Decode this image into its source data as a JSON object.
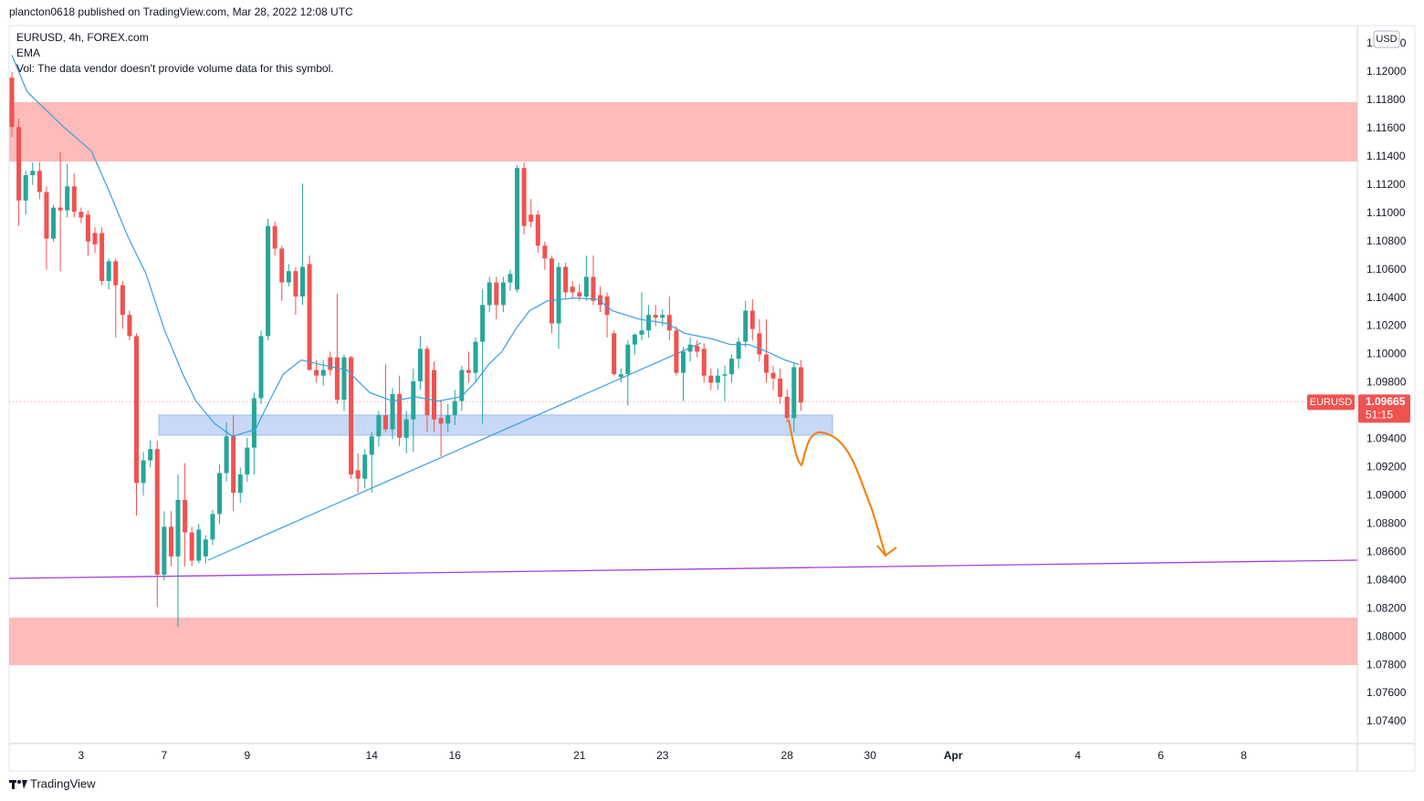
{
  "header": "plancton0618 published on TradingView.com, Mar 28, 2022 12:08 UTC",
  "footer": "TradingView",
  "chart_data": {
    "type": "candlestick",
    "title": "EURUSD, 4h, FOREX.com",
    "note": "Vol: The data vendor doesn't provide volume data for this symbol.",
    "currency": "USD",
    "up_color": "#26a69a",
    "down_color": "#ef5350",
    "open": [
      1.1196,
      1.1161,
      1.1109,
      1.1127,
      1.113,
      1.1115,
      1.1082,
      1.1104,
      1.1102,
      1.1119,
      1.1101,
      1.1099,
      1.1086,
      1.1086,
      1.1052,
      1.1066,
      1.1049,
      1.1028,
      1.1013,
      1.0909,
      1.0925,
      1.0933,
      1.0844,
      1.0878,
      1.0857,
      1.0897,
      1.0874,
      1.0854,
      1.0857,
      1.0869,
      1.0887,
      1.0916,
      1.0942,
      1.0902,
      1.0915,
      1.0934,
      1.0969,
      1.1013,
      1.1091,
      1.1075,
      1.1051,
      1.1059,
      1.1041,
      1.1064,
      1.0989,
      1.0985,
      1.0998,
      1.0998,
      1.0968,
      1.0998,
      1.0918,
      1.0912,
      1.0929,
      1.0942,
      1.0957,
      1.0947,
      1.0972,
      1.0941,
      1.0954,
      1.0981,
      1.1004,
      1.0989,
      1.0955,
      1.0951,
      1.0957,
      1.0967,
      1.0989,
      1.0987,
      1.1009,
      1.1035,
      1.1051,
      1.1035,
      1.1051,
      1.1046,
      1.1132,
      1.1099,
      1.1099,
      1.1077,
      1.1068,
      1.1022,
      1.1062,
      1.1048,
      1.1044,
      1.1041,
      1.1055,
      1.1042,
      1.1041,
      1.1015,
      1.0984,
      1.0986,
      1.1007,
      1.1014,
      1.1017,
      1.1028,
      1.1026,
      1.1028,
      1.1017,
      1.0987,
      1.1002,
      1.1006,
      1.1004,
      1.0985,
      1.098,
      1.0985,
      1.0986,
      1.0997,
      1.1009,
      1.1031,
      1.1015,
      1.1,
      1.0987,
      1.0983,
      1.097,
      1.0955,
      1.0991
    ],
    "high": [
      1.12,
      1.1167,
      1.113,
      1.1136,
      1.1136,
      1.1119,
      1.1106,
      1.1143,
      1.1135,
      1.1128,
      1.1104,
      1.1102,
      1.109,
      1.109,
      1.1068,
      1.1068,
      1.1052,
      1.1031,
      1.1015,
      1.0931,
      1.0939,
      1.0939,
      1.0889,
      1.0889,
      1.0915,
      1.0923,
      1.0878,
      1.088,
      1.0872,
      1.089,
      1.0922,
      1.0952,
      1.0957,
      1.092,
      1.0941,
      1.0973,
      1.1017,
      1.1096,
      1.1094,
      1.1077,
      1.1064,
      1.1062,
      1.1121,
      1.107,
      1.0996,
      1.0996,
      1.1002,
      1.1043,
      1.1,
      1.0999,
      1.093,
      1.0933,
      1.0945,
      1.096,
      1.0993,
      1.0976,
      1.0985,
      1.096,
      1.099,
      1.1013,
      1.1006,
      1.0995,
      1.0968,
      1.0965,
      1.0975,
      1.0992,
      1.1002,
      1.1012,
      1.1046,
      1.1055,
      1.1055,
      1.1055,
      1.106,
      1.1134,
      1.1136,
      1.111,
      1.1102,
      1.108,
      1.107,
      1.1065,
      1.1065,
      1.1052,
      1.105,
      1.107,
      1.107,
      1.1048,
      1.1044,
      1.1017,
      1.099,
      1.101,
      1.1015,
      1.1044,
      1.1035,
      1.1035,
      1.1032,
      1.1041,
      1.102,
      1.1005,
      1.1012,
      1.101,
      1.1008,
      1.099,
      1.099,
      1.0992,
      1.1,
      1.1012,
      1.1038,
      1.1039,
      1.1025,
      1.1025,
      1.0992,
      1.099,
      1.0975,
      1.0994,
      1.0996
    ],
    "low": [
      1.1154,
      1.1091,
      1.1099,
      1.112,
      1.111,
      1.106,
      1.108,
      1.1059,
      1.1097,
      1.1097,
      1.1093,
      1.107,
      1.1072,
      1.1049,
      1.1046,
      1.1012,
      1.1018,
      1.101,
      1.0886,
      1.09,
      1.092,
      1.0821,
      1.084,
      1.085,
      1.0807,
      1.085,
      1.085,
      1.0852,
      1.0852,
      1.0865,
      1.088,
      1.091,
      1.0889,
      1.0895,
      1.091,
      1.0915,
      1.0965,
      1.101,
      1.107,
      1.1038,
      1.1048,
      1.1028,
      1.1035,
      1.0989,
      1.098,
      1.0978,
      1.0985,
      1.0965,
      1.096,
      1.0912,
      1.0902,
      1.0905,
      1.0902,
      1.0935,
      1.0945,
      1.094,
      1.0935,
      1.093,
      1.0931,
      1.0975,
      1.0945,
      1.0945,
      1.0928,
      1.0945,
      1.095,
      1.096,
      1.098,
      1.098,
      1.0951,
      1.103,
      1.1025,
      1.103,
      1.1045,
      1.1044,
      1.1085,
      1.109,
      1.1072,
      1.106,
      1.1015,
      1.1004,
      1.104,
      1.104,
      1.1038,
      1.1038,
      1.1035,
      1.103,
      1.1012,
      1.0985,
      1.098,
      1.0964,
      1.1,
      1.101,
      1.1012,
      1.102,
      1.102,
      1.101,
      1.0985,
      1.0967,
      1.0995,
      1.0998,
      1.098,
      1.0975,
      1.0975,
      1.0967,
      1.098,
      1.099,
      1.1005,
      1.101,
      1.0995,
      1.098,
      1.0975,
      1.0965,
      1.0952,
      1.0945,
      1.096
    ],
    "close": [
      1.1161,
      1.1109,
      1.1127,
      1.113,
      1.1115,
      1.1082,
      1.1104,
      1.1102,
      1.1119,
      1.1101,
      1.1097,
      1.108,
      1.1078,
      1.1052,
      1.1066,
      1.1049,
      1.1028,
      1.1013,
      1.0909,
      1.0925,
      1.0933,
      1.0844,
      1.0878,
      1.0857,
      1.0897,
      1.0874,
      1.0854,
      1.0876,
      1.0869,
      1.0887,
      1.0916,
      1.0942,
      1.0902,
      1.0915,
      1.0934,
      1.0969,
      1.1013,
      1.1091,
      1.1075,
      1.1051,
      1.1059,
      1.1041,
      1.1062,
      1.0989,
      1.0985,
      1.0989,
      1.0989,
      1.0968,
      1.0998,
      1.0915,
      1.0912,
      1.0929,
      1.0942,
      1.0957,
      1.0947,
      1.0972,
      1.0941,
      1.0954,
      1.0981,
      1.1004,
      1.0957,
      1.0954,
      1.0951,
      1.0957,
      1.0967,
      1.0989,
      1.0987,
      1.1009,
      1.1035,
      1.1051,
      1.1035,
      1.1051,
      1.1057,
      1.1132,
      1.1091,
      1.1094,
      1.1077,
      1.1068,
      1.1022,
      1.1062,
      1.1044,
      1.1044,
      1.1041,
      1.1055,
      1.1038,
      1.1035,
      1.1028,
      1.0986,
      1.0986,
      1.1007,
      1.1014,
      1.1017,
      1.1028,
      1.1026,
      1.1028,
      1.1017,
      1.0987,
      1.1002,
      1.1007,
      1.1002,
      1.0985,
      1.098,
      1.0985,
      1.0986,
      1.0997,
      1.1009,
      1.1031,
      1.1018,
      1.1,
      1.0987,
      1.0983,
      1.097,
      1.0955,
      1.0991,
      1.0966
    ],
    "ema": {
      "name": "EMA",
      "color": "#3a9fe0",
      "x": [
        0,
        2.2,
        7.5,
        11.5,
        14.1,
        16.8,
        19.4,
        22,
        24.7,
        26.6,
        29.3,
        31.9,
        35.2,
        37.2,
        39.2,
        41.8,
        44.5,
        48.4,
        51.7,
        55,
        58.3,
        61.6,
        64.9,
        66.9,
        68.9,
        70.8,
        72.8,
        74.8,
        77.4,
        81.4,
        84.7,
        86.7,
        90.6,
        94.6,
        97.2,
        101.2,
        103.8,
        106.5,
        109.1,
        111.7,
        113.7
      ],
      "values": [
        1.1212,
        1.1186,
        1.1161,
        1.1144,
        1.1115,
        1.1083,
        1.1057,
        1.1018,
        1.0986,
        1.0967,
        1.0951,
        1.0942,
        1.0947,
        1.0967,
        1.0986,
        1.0996,
        1.0993,
        1.0989,
        1.0973,
        1.0967,
        1.097,
        1.0967,
        1.097,
        1.098,
        1.0993,
        1.1002,
        1.1018,
        1.1031,
        1.1038,
        1.104,
        1.1039,
        1.1031,
        1.1025,
        1.1022,
        1.1015,
        1.1011,
        1.1007,
        1.1007,
        1.1002,
        1.0996,
        1.0993
      ]
    },
    "price_tag": {
      "symbol": "EURUSD",
      "value": 1.09665,
      "countdown": "51:15"
    },
    "xlim": [
      -0.4,
      194.4
    ],
    "xticks": [
      {
        "value": 10,
        "label": "3"
      },
      {
        "value": 22,
        "label": "7"
      },
      {
        "value": 34,
        "label": "9"
      },
      {
        "value": 52,
        "label": "14"
      },
      {
        "value": 64,
        "label": "16"
      },
      {
        "value": 82,
        "label": "21"
      },
      {
        "value": 94,
        "label": "23"
      },
      {
        "value": 112,
        "label": "28"
      },
      {
        "value": 124,
        "label": "30"
      },
      {
        "value": 136,
        "label": "Apr"
      },
      {
        "value": 154,
        "label": "4"
      },
      {
        "value": 166,
        "label": "6"
      },
      {
        "value": 178,
        "label": "8"
      }
    ],
    "ylim": [
      1.07245,
      1.12329
    ],
    "yticks": [
      {
        "value": 1.074,
        "label": "1.07400"
      },
      {
        "value": 1.076,
        "label": "1.07600"
      },
      {
        "value": 1.078,
        "label": "1.07800"
      },
      {
        "value": 1.08,
        "label": "1.08000"
      },
      {
        "value": 1.082,
        "label": "1.08200"
      },
      {
        "value": 1.084,
        "label": "1.08400"
      },
      {
        "value": 1.086,
        "label": "1.08600"
      },
      {
        "value": 1.088,
        "label": "1.08800"
      },
      {
        "value": 1.09,
        "label": "1.09000"
      },
      {
        "value": 1.092,
        "label": "1.09200"
      },
      {
        "value": 1.094,
        "label": "1.09400"
      },
      {
        "value": 1.096,
        "label": "1.09600"
      },
      {
        "value": 1.098,
        "label": "1.09800"
      },
      {
        "value": 1.1,
        "label": "1.10000"
      },
      {
        "value": 1.102,
        "label": "1.10200"
      },
      {
        "value": 1.104,
        "label": "1.10400"
      },
      {
        "value": 1.106,
        "label": "1.10600"
      },
      {
        "value": 1.108,
        "label": "1.10800"
      },
      {
        "value": 1.11,
        "label": "1.11000"
      },
      {
        "value": 1.112,
        "label": "1.11200"
      },
      {
        "value": 1.114,
        "label": "1.11400"
      },
      {
        "value": 1.116,
        "label": "1.11600"
      },
      {
        "value": 1.118,
        "label": "1.11800"
      },
      {
        "value": 1.12,
        "label": "1.12000"
      },
      {
        "value": 1.122,
        "label": "1.12200"
      }
    ],
    "grid": false
  }
}
